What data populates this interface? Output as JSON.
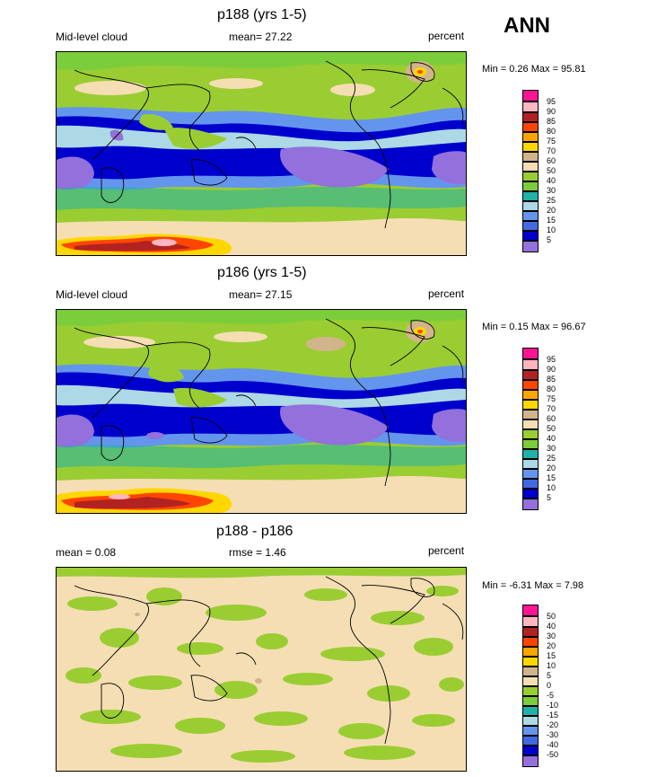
{
  "season": "ANN",
  "units": "percent",
  "chart_data": [
    {
      "type": "heatmap",
      "title": "p188 (yrs 1-5)",
      "variable_label": "Mid-level cloud",
      "stat_label": "mean=  27.22",
      "units": "percent",
      "min_max": "Min =   0.26 Max =  95.81",
      "min": 0.26,
      "max": 95.81,
      "mean": 27.22,
      "levels": [
        "95",
        "90",
        "85",
        "80",
        "75",
        "70",
        "60",
        "50",
        "40",
        "30",
        "25",
        "20",
        "15",
        "10",
        "5"
      ],
      "colors": [
        "#ff1493",
        "#ffb6c1",
        "#b22222",
        "#ff4500",
        "#ffa500",
        "#ffd700",
        "#d2b48c",
        "#f5deb3",
        "#9acd32",
        "#7ccd3c",
        "#20b2aa",
        "#add8e6",
        "#6495ed",
        "#4169e1",
        "#0000cd",
        "#9370db"
      ]
    },
    {
      "type": "heatmap",
      "title": "p186 (yrs 1-5)",
      "variable_label": "Mid-level cloud",
      "stat_label": "mean=  27.15",
      "units": "percent",
      "min_max": "Min =   0.15 Max =  96.67",
      "min": 0.15,
      "max": 96.67,
      "mean": 27.15,
      "levels": [
        "95",
        "90",
        "85",
        "80",
        "75",
        "70",
        "60",
        "50",
        "40",
        "30",
        "25",
        "20",
        "15",
        "10",
        "5"
      ],
      "colors": [
        "#ff1493",
        "#ffb6c1",
        "#b22222",
        "#ff4500",
        "#ffa500",
        "#ffd700",
        "#d2b48c",
        "#f5deb3",
        "#9acd32",
        "#7ccd3c",
        "#20b2aa",
        "#add8e6",
        "#6495ed",
        "#4169e1",
        "#0000cd",
        "#9370db"
      ]
    },
    {
      "type": "heatmap",
      "title": "p188 - p186",
      "variable_label": "mean =   0.08",
      "stat_label": "rmse =    1.46",
      "units": "percent",
      "min_max": "Min =  -6.31 Max =   7.98",
      "min": -6.31,
      "max": 7.98,
      "mean": 0.08,
      "rmse": 1.46,
      "levels": [
        "50",
        "40",
        "30",
        "20",
        "15",
        "10",
        "5",
        "0",
        "-5",
        "-10",
        "-15",
        "-20",
        "-30",
        "-40",
        "-50"
      ],
      "colors": [
        "#ff1493",
        "#ffb6c1",
        "#b22222",
        "#ff4500",
        "#ffa500",
        "#ffd700",
        "#d2b48c",
        "#f5deb3",
        "#9acd32",
        "#7ccd3c",
        "#20b2aa",
        "#add8e6",
        "#6495ed",
        "#4169e1",
        "#0000cd",
        "#9370db"
      ]
    }
  ]
}
